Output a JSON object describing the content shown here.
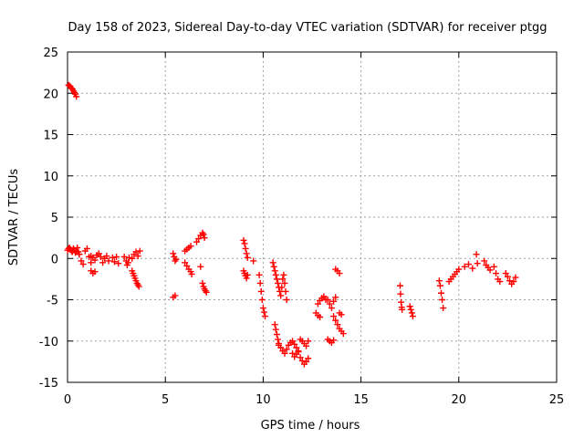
{
  "chart_data": {
    "type": "scatter",
    "title": "Day 158 of 2023, Sidereal Day-to-day VTEC variation (SDTVAR) for receiver ptgg",
    "xlabel": "GPS time / hours",
    "ylabel": "SDTVAR / TECUs",
    "xlim": [
      0,
      25
    ],
    "ylim": [
      -15,
      25
    ],
    "xticks": [
      0,
      5,
      10,
      15,
      20,
      25
    ],
    "yticks": [
      -15,
      -10,
      -5,
      0,
      5,
      10,
      15,
      20,
      25
    ],
    "grid": true,
    "marker": "plus",
    "color": "#ff0000",
    "segments": [
      {
        "x": [
          0.05,
          0.1,
          0.15,
          0.2,
          0.25,
          0.3,
          0.35,
          0.4,
          0.45
        ],
        "y": [
          21.0,
          20.9,
          20.8,
          20.6,
          20.5,
          20.3,
          20.1,
          19.9,
          19.6
        ]
      },
      {
        "x": [
          0.0,
          0.05,
          0.1,
          0.15,
          0.2,
          0.25,
          0.3,
          0.35,
          0.4,
          0.45,
          0.5,
          0.55,
          0.6
        ],
        "y": [
          1.0,
          1.2,
          1.3,
          1.1,
          0.9,
          0.8,
          1.2,
          1.0,
          0.7,
          0.9,
          1.3,
          0.8,
          0.5
        ]
      },
      {
        "x": [
          0.6,
          0.7,
          0.8,
          0.9,
          1.0,
          1.1,
          1.2
        ],
        "y": [
          0.5,
          -0.3,
          -0.7,
          0.9,
          1.2,
          0.2,
          -0.5
        ]
      },
      {
        "x": [
          1.2,
          1.3,
          1.4,
          1.5,
          1.6,
          1.7,
          1.8,
          1.9,
          2.0,
          2.1
        ],
        "y": [
          0.3,
          0.1,
          -0.2,
          0.4,
          0.6,
          0.2,
          -0.5,
          0.0,
          0.3,
          -0.3
        ]
      },
      {
        "x": [
          1.2,
          1.3,
          1.4
        ],
        "y": [
          -1.5,
          -1.8,
          -1.6
        ]
      },
      {
        "x": [
          2.3,
          2.4,
          2.5,
          2.6
        ],
        "y": [
          0.1,
          -0.4,
          0.2,
          -0.6
        ]
      },
      {
        "x": [
          2.9,
          3.0,
          3.05,
          3.1,
          3.15
        ],
        "y": [
          0.2,
          -0.3,
          -0.8,
          -0.5,
          0.1
        ]
      },
      {
        "x": [
          3.3,
          3.4,
          3.5,
          3.6,
          3.7
        ],
        "y": [
          0.0,
          0.5,
          0.8,
          0.3,
          0.9
        ]
      },
      {
        "x": [
          3.3,
          3.35,
          3.4,
          3.45,
          3.5,
          3.55,
          3.6,
          3.65
        ],
        "y": [
          -1.5,
          -1.8,
          -2.1,
          -2.4,
          -2.7,
          -3.0,
          -3.2,
          -3.4
        ]
      },
      {
        "x": [
          5.4,
          5.45,
          5.5,
          5.55
        ],
        "y": [
          0.6,
          0.2,
          -0.3,
          -0.1
        ]
      },
      {
        "x": [
          5.4,
          5.5
        ],
        "y": [
          -4.7,
          -4.5
        ]
      },
      {
        "x": [
          6.0,
          6.1,
          6.2,
          6.3
        ],
        "y": [
          0.9,
          1.1,
          1.3,
          1.5
        ]
      },
      {
        "x": [
          6.0,
          6.1,
          6.2,
          6.3,
          6.35
        ],
        "y": [
          -0.5,
          -0.9,
          -1.3,
          -1.6,
          -1.9
        ]
      },
      {
        "x": [
          6.6,
          6.7,
          6.8,
          6.9,
          6.95,
          7.0
        ],
        "y": [
          2.0,
          2.4,
          2.8,
          3.1,
          2.9,
          2.5
        ]
      },
      {
        "x": [
          6.8,
          6.9,
          6.95,
          7.0,
          7.05,
          7.1
        ],
        "y": [
          -1.0,
          -3.0,
          -3.4,
          -3.7,
          -3.9,
          -4.1
        ]
      },
      {
        "x": [
          9.0,
          9.05,
          9.1,
          9.15,
          9.2
        ],
        "y": [
          2.2,
          1.8,
          1.2,
          0.6,
          0.1
        ]
      },
      {
        "x": [
          9.0,
          9.05,
          9.1,
          9.15,
          9.2
        ],
        "y": [
          -1.5,
          -1.8,
          -2.1,
          -2.4,
          -2.0
        ]
      },
      {
        "x": [
          9.5
        ],
        "y": [
          -0.3
        ]
      },
      {
        "x": [
          9.8,
          9.85,
          9.9,
          9.95,
          10.0,
          10.05,
          10.1
        ],
        "y": [
          -2.0,
          -3.0,
          -4.0,
          -5.0,
          -6.0,
          -6.5,
          -7.0
        ]
      },
      {
        "x": [
          10.5,
          10.55,
          10.6,
          10.65,
          10.7,
          10.75,
          10.8,
          10.85,
          10.9,
          10.95,
          11.0,
          11.05,
          11.1,
          11.15,
          11.2
        ],
        "y": [
          -0.5,
          -1.0,
          -1.5,
          -2.0,
          -2.5,
          -3.0,
          -3.5,
          -4.0,
          -4.5,
          -3.5,
          -2.5,
          -2.0,
          -3.0,
          -4.0,
          -5.0
        ]
      },
      {
        "x": [
          10.6,
          10.65,
          10.7,
          10.75,
          10.8
        ],
        "y": [
          -8.0,
          -8.6,
          -9.2,
          -9.8,
          -10.3
        ]
      },
      {
        "x": [
          10.8,
          10.9,
          11.0,
          11.1,
          11.2,
          11.3,
          11.4,
          11.5,
          11.6,
          11.7,
          11.8
        ],
        "y": [
          -10.5,
          -10.8,
          -11.2,
          -11.5,
          -11.0,
          -10.5,
          -10.2,
          -10.0,
          -10.4,
          -10.8,
          -11.3
        ]
      },
      {
        "x": [
          11.5,
          11.6,
          11.7,
          11.8,
          11.9,
          12.0,
          12.1,
          12.2,
          12.3
        ],
        "y": [
          -11.5,
          -11.9,
          -11.6,
          -11.2,
          -12.0,
          -12.4,
          -12.8,
          -12.5,
          -12.1
        ]
      },
      {
        "x": [
          11.9,
          12.0,
          12.1,
          12.2,
          12.3
        ],
        "y": [
          -9.8,
          -10.0,
          -10.3,
          -10.6,
          -10.0
        ]
      },
      {
        "x": [
          12.7,
          12.8,
          12.9
        ],
        "y": [
          -6.6,
          -6.9,
          -7.1
        ]
      },
      {
        "x": [
          12.8,
          12.9,
          13.0,
          13.1,
          13.2
        ],
        "y": [
          -5.5,
          -5.1,
          -4.8,
          -4.6,
          -5.0
        ]
      },
      {
        "x": [
          13.3,
          13.4,
          13.5,
          13.6,
          13.7
        ],
        "y": [
          -5.0,
          -5.5,
          -6.0,
          -5.2,
          -4.7
        ]
      },
      {
        "x": [
          13.3,
          13.4,
          13.5,
          13.6
        ],
        "y": [
          -9.8,
          -10.0,
          -10.2,
          -9.9
        ]
      },
      {
        "x": [
          13.6,
          13.7,
          13.8,
          13.9,
          14.0,
          14.1
        ],
        "y": [
          -7.0,
          -7.5,
          -8.0,
          -8.5,
          -8.8,
          -9.1
        ]
      },
      {
        "x": [
          13.7,
          13.8,
          13.9
        ],
        "y": [
          -1.3,
          -1.5,
          -1.8
        ]
      },
      {
        "x": [
          13.9,
          14.0
        ],
        "y": [
          -6.6,
          -6.8
        ]
      },
      {
        "x": [
          17.0,
          17.02,
          17.05,
          17.08,
          17.1
        ],
        "y": [
          -3.3,
          -4.3,
          -5.3,
          -5.9,
          -6.2
        ]
      },
      {
        "x": [
          17.5,
          17.55,
          17.6,
          17.65
        ],
        "y": [
          -5.8,
          -6.2,
          -6.6,
          -7.0
        ]
      },
      {
        "x": [
          19.0,
          19.05,
          19.1,
          19.15,
          19.2
        ],
        "y": [
          -2.7,
          -3.3,
          -4.2,
          -5.0,
          -6.0
        ]
      },
      {
        "x": [
          19.5,
          19.6,
          19.7,
          19.8,
          19.9,
          20.0
        ],
        "y": [
          -2.8,
          -2.5,
          -2.2,
          -1.9,
          -1.6,
          -1.3
        ]
      },
      {
        "x": [
          20.3,
          20.5,
          20.7
        ],
        "y": [
          -1.0,
          -0.7,
          -1.2
        ]
      },
      {
        "x": [
          20.9,
          20.95
        ],
        "y": [
          0.5,
          -0.6
        ]
      },
      {
        "x": [
          21.3,
          21.4,
          21.5,
          21.6
        ],
        "y": [
          -0.3,
          -0.8,
          -1.1,
          -1.4
        ]
      },
      {
        "x": [
          21.8,
          21.9,
          22.0,
          22.1
        ],
        "y": [
          -1.0,
          -1.8,
          -2.5,
          -2.8
        ]
      },
      {
        "x": [
          22.4,
          22.5,
          22.6,
          22.7,
          22.8,
          22.9
        ],
        "y": [
          -1.8,
          -2.2,
          -2.7,
          -3.1,
          -2.8,
          -2.3
        ]
      }
    ]
  }
}
